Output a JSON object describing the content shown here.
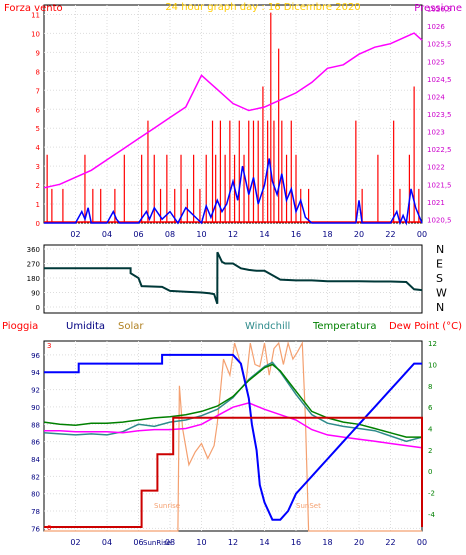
{
  "chart_data": [
    {
      "type": "line",
      "title": "24 hour graph day : 16 Dicembre 2020",
      "left_axis_label": "Forza vento",
      "right_axis_label": "Pressione",
      "left_ticks": [
        "0",
        "1",
        "2",
        "3",
        "4",
        "5",
        "6",
        "7",
        "8",
        "9",
        "10",
        "11"
      ],
      "right_ticks": [
        "1020,5",
        "1021",
        "1021,5",
        "1022",
        "1022,5",
        "1023",
        "1023,5",
        "1024",
        "1024,5",
        "1025",
        "1025,5",
        "1026",
        "1026,5"
      ],
      "x_ticks": [
        "02",
        "04",
        "06",
        "08",
        "10",
        "12",
        "14",
        "16",
        "18",
        "20",
        "22",
        "00"
      ],
      "colors": {
        "gust": "#ff0000",
        "speed": "#0000ff",
        "pressure": "#ff00ff"
      },
      "ylim_left": [
        0,
        11.5
      ],
      "ylim_right": [
        1020.4,
        1026.6
      ],
      "pressure": {
        "x": [
          0,
          1,
          2,
          3,
          4,
          5,
          6,
          7,
          8,
          9,
          10,
          10.5,
          11,
          12,
          13,
          14,
          15,
          16,
          17,
          18,
          19,
          20,
          21,
          22,
          23,
          23.5,
          24
        ],
        "y": [
          1021.4,
          1021.5,
          1021.7,
          1021.9,
          1022.2,
          1022.5,
          1022.8,
          1023.1,
          1023.4,
          1023.7,
          1024.6,
          1024.4,
          1024.2,
          1023.8,
          1023.6,
          1023.7,
          1023.9,
          1024.1,
          1024.4,
          1024.8,
          1024.9,
          1025.2,
          1025.4,
          1025.5,
          1025.7,
          1025.8,
          1025.6
        ]
      },
      "gust_bars": [
        {
          "t": 0.2,
          "v": 3.6
        },
        {
          "t": 0.5,
          "v": 1.8
        },
        {
          "t": 1.2,
          "v": 1.8
        },
        {
          "t": 2.6,
          "v": 3.6
        },
        {
          "t": 3.1,
          "v": 1.8
        },
        {
          "t": 3.6,
          "v": 1.8
        },
        {
          "t": 4.5,
          "v": 1.8
        },
        {
          "t": 5.1,
          "v": 3.6
        },
        {
          "t": 6.2,
          "v": 3.6
        },
        {
          "t": 6.6,
          "v": 5.4
        },
        {
          "t": 7.0,
          "v": 3.6
        },
        {
          "t": 7.4,
          "v": 1.8
        },
        {
          "t": 7.8,
          "v": 3.6
        },
        {
          "t": 8.3,
          "v": 1.8
        },
        {
          "t": 8.7,
          "v": 3.6
        },
        {
          "t": 9.1,
          "v": 1.8
        },
        {
          "t": 9.5,
          "v": 3.6
        },
        {
          "t": 9.9,
          "v": 1.8
        },
        {
          "t": 10.3,
          "v": 3.6
        },
        {
          "t": 10.7,
          "v": 5.4
        },
        {
          "t": 10.9,
          "v": 3.6
        },
        {
          "t": 11.2,
          "v": 5.4
        },
        {
          "t": 11.5,
          "v": 3.6
        },
        {
          "t": 11.8,
          "v": 5.4
        },
        {
          "t": 12.1,
          "v": 3.6
        },
        {
          "t": 12.4,
          "v": 5.4
        },
        {
          "t": 12.7,
          "v": 3.6
        },
        {
          "t": 13.0,
          "v": 5.4
        },
        {
          "t": 13.3,
          "v": 5.4
        },
        {
          "t": 13.6,
          "v": 5.4
        },
        {
          "t": 13.9,
          "v": 7.2
        },
        {
          "t": 14.2,
          "v": 5.4
        },
        {
          "t": 14.4,
          "v": 11.1
        },
        {
          "t": 14.6,
          "v": 5.4
        },
        {
          "t": 14.9,
          "v": 9.2
        },
        {
          "t": 15.1,
          "v": 5.4
        },
        {
          "t": 15.4,
          "v": 3.6
        },
        {
          "t": 15.7,
          "v": 5.4
        },
        {
          "t": 16.0,
          "v": 3.6
        },
        {
          "t": 16.3,
          "v": 1.8
        },
        {
          "t": 16.8,
          "v": 1.8
        },
        {
          "t": 19.8,
          "v": 5.4
        },
        {
          "t": 20.2,
          "v": 1.8
        },
        {
          "t": 21.2,
          "v": 3.6
        },
        {
          "t": 22.2,
          "v": 5.4
        },
        {
          "t": 22.6,
          "v": 1.8
        },
        {
          "t": 23.2,
          "v": 3.6
        },
        {
          "t": 23.5,
          "v": 7.2
        },
        {
          "t": 23.8,
          "v": 1.8
        }
      ],
      "wind_speed": {
        "x": [
          0,
          1,
          2,
          2.4,
          2.6,
          2.8,
          3,
          4,
          4.4,
          4.6,
          4.8,
          5.5,
          6,
          6.5,
          6.7,
          7,
          7.5,
          8,
          8.5,
          9,
          9.5,
          10,
          10.3,
          10.6,
          11,
          11.3,
          11.6,
          12,
          12.3,
          12.6,
          13,
          13.3,
          13.6,
          14,
          14.3,
          14.5,
          14.8,
          15.1,
          15.4,
          15.7,
          16,
          16.3,
          16.6,
          17,
          19,
          19.8,
          20,
          20.2,
          21,
          22,
          22.4,
          22.6,
          22.8,
          23,
          23.3,
          23.6,
          24
        ],
        "y": [
          0,
          0,
          0,
          0.6,
          0.2,
          0.8,
          0,
          0,
          0.6,
          0.2,
          0,
          0,
          0,
          0.6,
          0.2,
          0.8,
          0.2,
          0.6,
          0,
          0.8,
          0.4,
          0,
          0.9,
          0.3,
          1.2,
          0.6,
          1.0,
          2.2,
          1.2,
          3.0,
          1.5,
          2.4,
          1.0,
          2.0,
          3.4,
          2.2,
          1.5,
          2.6,
          1.2,
          1.8,
          0.6,
          1.2,
          0.3,
          0,
          0,
          0,
          1.2,
          0,
          0,
          0,
          0.6,
          0,
          0.4,
          0,
          1.8,
          0.8,
          0
        ]
      }
    },
    {
      "type": "line",
      "title": "",
      "direction_labels": [
        "N",
        "W",
        "S",
        "E",
        "N"
      ],
      "y_ticks": [
        "0",
        "90",
        "180",
        "270",
        "360"
      ],
      "x_ticks": [
        "02",
        "04",
        "06",
        "08",
        "10",
        "12",
        "14",
        "16",
        "18",
        "20",
        "22",
        "00"
      ],
      "color": "#003838",
      "ylim": [
        0,
        360
      ],
      "wind_direction": {
        "x": [
          0,
          5.5,
          5.5,
          6,
          6.2,
          7.5,
          8,
          9,
          10,
          10.5,
          10.8,
          11,
          11.01,
          11.3,
          11.5,
          12,
          12.5,
          13,
          13.5,
          14,
          15,
          16,
          17,
          18,
          19,
          20,
          21,
          22,
          23,
          23.5,
          24
        ],
        "y": [
          240,
          240,
          210,
          180,
          130,
          125,
          100,
          95,
          90,
          85,
          80,
          20,
          340,
          280,
          270,
          270,
          240,
          230,
          225,
          225,
          170,
          165,
          165,
          160,
          160,
          160,
          158,
          158,
          155,
          110,
          105
        ]
      }
    },
    {
      "type": "line",
      "title": "",
      "labels": {
        "rain": "Pioggia",
        "humidity": "Umidita",
        "solar": "Solar",
        "windchill": "Windchill",
        "temperature": "Temperatura",
        "dewpoint": "Dew Point (°C)",
        "sunrise": "Sunrise",
        "sunset": "SunSet",
        "sunrise_tick": "SunRise"
      },
      "colors": {
        "rain": "#cc0000",
        "humidity": "#0000ff",
        "solar": "#f4a070",
        "windchill": "#2e8b8b",
        "temperature": "#008000",
        "dewpoint": "#ff00ff",
        "rain_label": "#ff0000",
        "humidity_label": "#000080",
        "solar_label": "#b08020",
        "windchill_label": "#2e8b8b",
        "temperature_label": "#008000",
        "dewpoint_label": "#ff0000"
      },
      "left_ticks": [
        "76",
        "78",
        "80",
        "82",
        "84",
        "86",
        "88",
        "90",
        "92",
        "94",
        "96"
      ],
      "right_ticks": [
        "-4",
        "-2",
        "0",
        "2",
        "4",
        "6",
        "8",
        "10",
        "12"
      ],
      "rain_ticks": [
        "0",
        "3"
      ],
      "x_ticks": [
        "02",
        "04",
        "06",
        "08",
        "10",
        "12",
        "14",
        "16",
        "18",
        "20",
        "22",
        "00"
      ],
      "ylim_left": [
        75.7,
        97.6
      ],
      "ylim_right": [
        -5.6,
        12.2
      ],
      "humidity": {
        "x": [
          0,
          2.2,
          2.2,
          7.5,
          7.5,
          12,
          12.5,
          13,
          13.2,
          13.5,
          13.7,
          14,
          14.5,
          15,
          15.5,
          16,
          16.5,
          17,
          17.5,
          18,
          18.5,
          19,
          19.5,
          20,
          20.5,
          21,
          21.5,
          22,
          22.5,
          23,
          23.5,
          24
        ],
        "y": [
          94,
          94,
          95,
          95,
          96,
          96,
          95,
          91,
          88,
          85,
          81,
          79,
          77,
          77,
          78,
          80,
          81,
          82,
          83,
          84,
          85,
          86,
          87,
          88,
          89,
          90,
          91,
          92,
          93,
          94,
          95,
          95
        ]
      },
      "temperature": {
        "x": [
          0,
          1,
          2,
          3,
          4,
          5,
          6,
          7,
          8,
          9,
          10,
          11,
          12,
          13,
          14,
          14.5,
          15,
          16,
          17,
          18,
          19,
          20,
          21,
          22,
          23,
          24
        ],
        "y": [
          4.6,
          4.4,
          4.3,
          4.5,
          4.5,
          4.6,
          4.8,
          5.0,
          5.1,
          5.3,
          5.6,
          6.1,
          7.0,
          8.5,
          9.7,
          10.0,
          9.4,
          7.5,
          5.6,
          5.0,
          4.6,
          4.4,
          4.0,
          3.6,
          3.2,
          3.2
        ]
      },
      "windchill": {
        "x": [
          0,
          1,
          2,
          3,
          4,
          5,
          6,
          7,
          8,
          9,
          10,
          11,
          12,
          13,
          14,
          14.5,
          15,
          16,
          17,
          18,
          19,
          20,
          21,
          22,
          23,
          24
        ],
        "y": [
          3.6,
          3.5,
          3.4,
          3.5,
          3.4,
          3.7,
          4.4,
          4.2,
          4.6,
          4.8,
          5.2,
          5.8,
          6.9,
          8.6,
          9.8,
          10.2,
          9.3,
          7.2,
          5.3,
          4.5,
          4.2,
          4.0,
          3.8,
          3.3,
          2.8,
          3.2
        ]
      },
      "dewpoint": {
        "x": [
          0,
          1,
          2,
          3,
          4,
          5,
          6,
          7,
          8,
          9,
          10,
          11,
          12,
          13,
          14,
          15,
          16,
          17,
          18,
          19,
          20,
          21,
          22,
          23,
          24
        ],
        "y": [
          3.8,
          3.8,
          3.7,
          3.7,
          3.7,
          3.6,
          3.8,
          3.9,
          3.9,
          4.0,
          4.4,
          5.2,
          6.0,
          6.4,
          5.8,
          5.3,
          4.8,
          3.9,
          3.4,
          3.2,
          3.0,
          2.8,
          2.6,
          2.4,
          2.2
        ]
      },
      "solar": {
        "x": [
          0,
          8.5,
          8.6,
          8.8,
          9.2,
          9.6,
          10,
          10.4,
          10.8,
          11,
          11.4,
          11.8,
          12.1,
          12.4,
          12.8,
          13.1,
          13.4,
          13.7,
          14,
          14.3,
          14.6,
          14.9,
          15.2,
          15.5,
          15.8,
          16.1,
          16.4,
          16.6,
          16.8,
          24
        ],
        "y": [
          -5.6,
          -5.6,
          8,
          4,
          0.6,
          1.8,
          2.6,
          1.2,
          2.4,
          4.5,
          10.5,
          9.0,
          12.0,
          10.5,
          8.0,
          12.0,
          10.0,
          9.8,
          12.0,
          9.0,
          11.5,
          12.0,
          10.0,
          12.0,
          10.5,
          11.2,
          12.0,
          5.0,
          -5.6,
          -5.6
        ]
      },
      "rain": {
        "x": [
          0,
          6.2,
          6.2,
          7.2,
          7.2,
          8.2,
          8.2,
          24,
          24
        ],
        "y": [
          0,
          0,
          0.6,
          0.6,
          1.2,
          1.2,
          1.8,
          1.8,
          0
        ]
      }
    }
  ]
}
